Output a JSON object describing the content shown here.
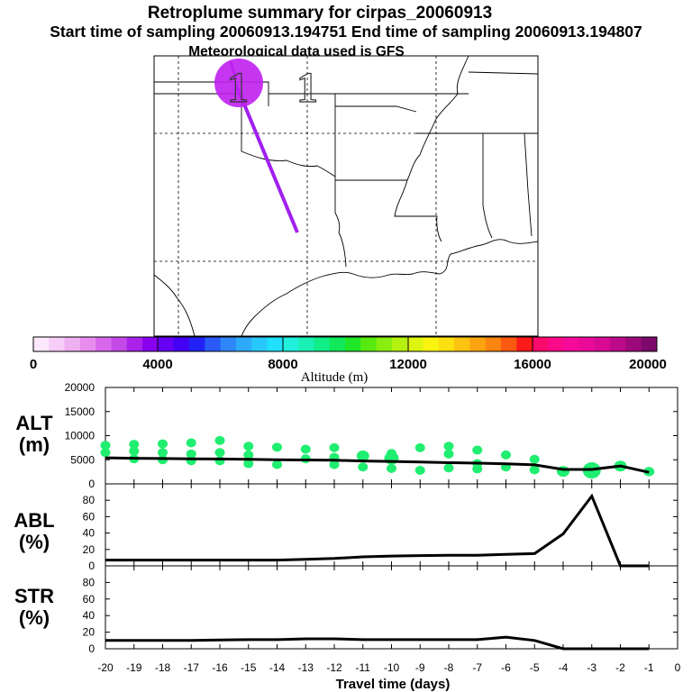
{
  "titles": {
    "line1": "Retroplume summary for cirpas_20060913",
    "line2": "Start time of sampling 20060913.194751     End time of sampling 20060913.194807",
    "line3": "Meteorological data used is GFS"
  },
  "colorbar": {
    "label": "Altitude (m)",
    "ticks": [
      "0",
      "4000",
      "8000",
      "12000",
      "16000",
      "20000"
    ],
    "colors": [
      "#fde8fd",
      "#f6cdf6",
      "#efb0f2",
      "#e88cee",
      "#d768ec",
      "#c44ae8",
      "#aa22e8",
      "#8800f0",
      "#6600f2",
      "#4400f4",
      "#2222f6",
      "#2a5af8",
      "#2f86fa",
      "#2eaafa",
      "#28c8fc",
      "#20e0fc",
      "#20f0dc",
      "#18f0b4",
      "#10ee88",
      "#10ea5a",
      "#20e628",
      "#58ea10",
      "#88ee10",
      "#b4f010",
      "#dcf410",
      "#f8f410",
      "#fce010",
      "#fcc410",
      "#fca410",
      "#fc8410",
      "#fc5a10",
      "#fc1a1a",
      "#fa0a6a",
      "#fa0a88",
      "#f60a9a",
      "#ea0a98",
      "#d80a92",
      "#bc0a88",
      "#9c0a7a",
      "#7c0a6a"
    ]
  },
  "map_overlay": {
    "marker_label": "1",
    "plume_color": "#a020f0",
    "circle_color": "#c020f0"
  },
  "chart_data": [
    {
      "type": "line",
      "id": "alt",
      "title": "ALT\n(m)",
      "title_lines": [
        "ALT",
        "(m)"
      ],
      "x": [
        -20,
        -19,
        -18,
        -17,
        -16,
        -15,
        -14,
        -13,
        -12,
        -11,
        -10,
        -9,
        -8,
        -7,
        -6,
        -5,
        -4,
        -3,
        -2,
        -1
      ],
      "y": [
        5400,
        5300,
        5250,
        5200,
        5150,
        5100,
        5000,
        4950,
        4900,
        4750,
        4650,
        4550,
        4400,
        4300,
        4150,
        3950,
        3000,
        3000,
        3700,
        2400
      ],
      "scatter_dots": [
        [
          -20,
          8000
        ],
        [
          -20,
          6500
        ],
        [
          -19,
          8200
        ],
        [
          -19,
          6800
        ],
        [
          -19,
          5200
        ],
        [
          -18,
          8300
        ],
        [
          -18,
          6500
        ],
        [
          -18,
          5000
        ],
        [
          -17,
          8500
        ],
        [
          -17,
          6200
        ],
        [
          -17,
          4800
        ],
        [
          -16,
          9000
        ],
        [
          -16,
          6500
        ],
        [
          -16,
          4800
        ],
        [
          -15,
          7800
        ],
        [
          -15,
          6000
        ],
        [
          -15,
          4200
        ],
        [
          -14,
          7600
        ],
        [
          -14,
          4000
        ],
        [
          -13,
          7200
        ],
        [
          -13,
          5200
        ],
        [
          -12,
          7500
        ],
        [
          -12,
          5500
        ],
        [
          -12,
          4000
        ],
        [
          -11,
          6000
        ],
        [
          -11,
          3500
        ],
        [
          -10,
          6300
        ],
        [
          -10,
          3200
        ],
        [
          -9,
          7500
        ],
        [
          -9,
          2800
        ],
        [
          -8,
          7800
        ],
        [
          -8,
          6200
        ],
        [
          -8,
          3300
        ],
        [
          -7,
          7000
        ],
        [
          -7,
          4200
        ],
        [
          -7,
          3100
        ],
        [
          -6,
          6000
        ],
        [
          -6,
          3500
        ],
        [
          -5,
          5100
        ],
        [
          -5,
          2900
        ],
        [
          -4,
          2400
        ],
        [
          -3,
          2500
        ],
        [
          -2,
          3700
        ],
        [
          -1,
          2600
        ]
      ],
      "ylim": [
        0,
        20000
      ],
      "yticks": [
        "0",
        "5000",
        "10000",
        "15000",
        "20000"
      ]
    },
    {
      "type": "line",
      "id": "abl",
      "title_lines": [
        "ABL",
        "(%)"
      ],
      "x": [
        -20,
        -19,
        -18,
        -17,
        -16,
        -15,
        -14,
        -13,
        -12,
        -11,
        -10,
        -9,
        -8,
        -7,
        -6,
        -5,
        -4,
        -3,
        -2,
        -1
      ],
      "y": [
        7,
        7,
        7,
        7,
        7,
        7,
        7,
        8,
        9,
        11,
        12,
        12.5,
        13,
        13,
        14,
        15,
        39,
        85,
        0,
        0
      ],
      "ylim": [
        0,
        100
      ],
      "yticks": [
        "0",
        "20",
        "40",
        "60",
        "80"
      ]
    },
    {
      "type": "line",
      "id": "str",
      "title_lines": [
        "STR",
        "(%)"
      ],
      "x": [
        -20,
        -19,
        -18,
        -17,
        -16,
        -15,
        -14,
        -13,
        -12,
        -11,
        -10,
        -9,
        -8,
        -7,
        -6,
        -5,
        -4,
        -3,
        -2,
        -1
      ],
      "y": [
        10,
        10,
        10,
        10,
        10.5,
        11,
        11,
        12,
        12,
        11,
        11,
        11,
        11,
        11,
        14,
        10,
        0,
        0,
        0,
        0
      ],
      "ylim": [
        0,
        100
      ],
      "yticks": [
        "0",
        "20",
        "40",
        "60",
        "80"
      ]
    }
  ],
  "x_axis": {
    "label": "Travel time (days)",
    "ticks": [
      "-20",
      "-19",
      "-18",
      "-17",
      "-16",
      "-15",
      "-14",
      "-13",
      "-12",
      "-11",
      "-10",
      "-9",
      "-8",
      "-7",
      "-6",
      "-5",
      "-4",
      "-3",
      "-2",
      "-1",
      "0"
    ],
    "xlim": [
      -20,
      0
    ]
  }
}
